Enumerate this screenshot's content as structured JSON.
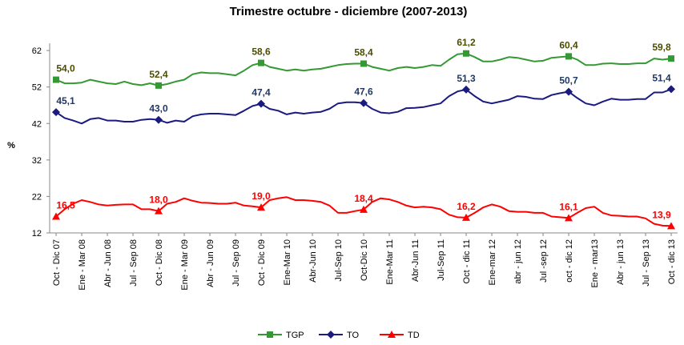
{
  "chart_data": {
    "type": "line",
    "title": "Trimestre octubre - diciembre (2007-2013)",
    "y_label": "%",
    "categories": [
      "Oct - Dic 07",
      null,
      null,
      "Ene - Mar 08",
      null,
      null,
      "Abr - Jun 08",
      null,
      null,
      "Jul - Sep 08",
      null,
      null,
      "Oct - Dic 08",
      null,
      null,
      "Ene - Mar 09",
      null,
      null,
      "Abr - Jun 09",
      null,
      null,
      "Jul - Sep 09",
      null,
      null,
      "Oct - Dic 09",
      null,
      null,
      "Ene-Mar 10",
      null,
      null,
      "Abr-Jun 10",
      null,
      null,
      "Jul-Sep 10",
      null,
      null,
      "Oct-Dic 10",
      null,
      null,
      "Ene-Mar 11",
      null,
      null,
      "Abr-Jun 11",
      null,
      null,
      "Jul-Sep 11",
      null,
      null,
      "Oct - dic 11",
      null,
      null,
      "Ene-mar 12",
      null,
      null,
      "abr - jun 12",
      null,
      null,
      "Jul -sep 12",
      null,
      null,
      "oct - dic 12",
      null,
      null,
      "Ene - mar13",
      null,
      null,
      "Abr - jun 13",
      null,
      null,
      "Jul - Sep 13",
      null,
      null,
      "Oct - dic 13"
    ],
    "series": [
      {
        "name": "TGP",
        "color": "#339933",
        "label_color": "#4d4d00",
        "marker": "square",
        "values": [
          54.0,
          53,
          53,
          53.2,
          54,
          53.5,
          53,
          52.8,
          53.5,
          52.8,
          52.5,
          53,
          52.4,
          52.8,
          53.5,
          54,
          55.5,
          56,
          55.8,
          55.8,
          55.5,
          55.2,
          56.5,
          58,
          58.6,
          57.5,
          57,
          56.5,
          56.8,
          56.5,
          56.8,
          57,
          57.5,
          58,
          58.3,
          58.4,
          58.4,
          57.5,
          57,
          56.5,
          57.2,
          57.5,
          57.2,
          57.5,
          58,
          57.8,
          59.5,
          61,
          61.2,
          60.2,
          59,
          59,
          59.5,
          60.2,
          60,
          59.5,
          59,
          59.2,
          60,
          60.2,
          60.4,
          59.5,
          58,
          58,
          58.4,
          58.5,
          58.3,
          58.3,
          58.5,
          58.5,
          59.8,
          59.5,
          59.8
        ],
        "value_labels": [
          "54,0",
          null,
          null,
          null,
          null,
          null,
          null,
          null,
          null,
          null,
          null,
          null,
          "52,4",
          null,
          null,
          null,
          null,
          null,
          null,
          null,
          null,
          null,
          null,
          null,
          "58,6",
          null,
          null,
          null,
          null,
          null,
          null,
          null,
          null,
          null,
          null,
          null,
          "58,4",
          null,
          null,
          null,
          null,
          null,
          null,
          null,
          null,
          null,
          null,
          null,
          "61,2",
          null,
          null,
          null,
          null,
          null,
          null,
          null,
          null,
          null,
          null,
          null,
          "60,4",
          null,
          null,
          null,
          null,
          null,
          null,
          null,
          null,
          null,
          null,
          null,
          "59,8"
        ]
      },
      {
        "name": "TO",
        "color": "#1a1a80",
        "label_color": "#1f3864",
        "marker": "diamond",
        "values": [
          45.1,
          43.5,
          42.8,
          42,
          43.2,
          43.5,
          42.8,
          42.8,
          42.5,
          42.5,
          43,
          43.2,
          43.0,
          42.2,
          42.8,
          42.5,
          44,
          44.5,
          44.7,
          44.7,
          44.5,
          44.3,
          45.5,
          46.8,
          47.4,
          46,
          45.5,
          44.5,
          45,
          44.7,
          45,
          45.2,
          46,
          47.5,
          47.8,
          47.8,
          47.6,
          46,
          45,
          44.8,
          45.2,
          46.2,
          46.3,
          46.5,
          47,
          47.5,
          49.5,
          50.8,
          51.3,
          49.5,
          48,
          47.5,
          48,
          48.5,
          49.5,
          49.3,
          48.8,
          48.7,
          49.8,
          50.3,
          50.7,
          49,
          47.5,
          47,
          48,
          48.8,
          48.5,
          48.5,
          48.7,
          48.7,
          50.5,
          50.5,
          51.4
        ],
        "value_labels": [
          "45,1",
          null,
          null,
          null,
          null,
          null,
          null,
          null,
          null,
          null,
          null,
          null,
          "43,0",
          null,
          null,
          null,
          null,
          null,
          null,
          null,
          null,
          null,
          null,
          null,
          "47,4",
          null,
          null,
          null,
          null,
          null,
          null,
          null,
          null,
          null,
          null,
          null,
          "47,6",
          null,
          null,
          null,
          null,
          null,
          null,
          null,
          null,
          null,
          null,
          null,
          "51,3",
          null,
          null,
          null,
          null,
          null,
          null,
          null,
          null,
          null,
          null,
          null,
          "50,7",
          null,
          null,
          null,
          null,
          null,
          null,
          null,
          null,
          null,
          null,
          null,
          "51,4"
        ]
      },
      {
        "name": "TD",
        "color": "#ff0000",
        "label_color": "#ff0000",
        "marker": "triangle",
        "values": [
          16.5,
          18.5,
          20,
          21,
          20.5,
          19.8,
          19.5,
          19.7,
          19.8,
          19.8,
          18.5,
          18.5,
          18.0,
          20,
          20.5,
          21.5,
          20.8,
          20.3,
          20.2,
          20,
          20,
          20.3,
          19.5,
          19.3,
          19.0,
          21,
          21.5,
          21.8,
          21,
          21,
          20.8,
          20.5,
          19.5,
          17.5,
          17.5,
          18,
          18.4,
          20.5,
          21.5,
          21.2,
          20.5,
          19.5,
          19,
          19.2,
          19,
          18.5,
          17,
          16.3,
          16.2,
          17.5,
          19,
          19.8,
          19.2,
          18,
          17.8,
          17.8,
          17.5,
          17.5,
          16.5,
          16.3,
          16.1,
          17.5,
          18.8,
          19.2,
          17.5,
          16.8,
          16.7,
          16.5,
          16.5,
          16,
          14.5,
          14,
          13.9
        ],
        "value_labels": [
          "16,5",
          null,
          null,
          null,
          null,
          null,
          null,
          null,
          null,
          null,
          null,
          null,
          "18,0",
          null,
          null,
          null,
          null,
          null,
          null,
          null,
          null,
          null,
          null,
          null,
          "19,0",
          null,
          null,
          null,
          null,
          null,
          null,
          null,
          null,
          null,
          null,
          null,
          "18,4",
          null,
          null,
          null,
          null,
          null,
          null,
          null,
          null,
          null,
          null,
          null,
          "16,2",
          null,
          null,
          null,
          null,
          null,
          null,
          null,
          null,
          null,
          null,
          null,
          "16,1",
          null,
          null,
          null,
          null,
          null,
          null,
          null,
          null,
          null,
          null,
          null,
          "13,9"
        ]
      }
    ],
    "ylim": [
      12,
      64
    ],
    "yticks": [
      12,
      22,
      32,
      42,
      52,
      62
    ],
    "grid": false,
    "legend": "bottom"
  }
}
